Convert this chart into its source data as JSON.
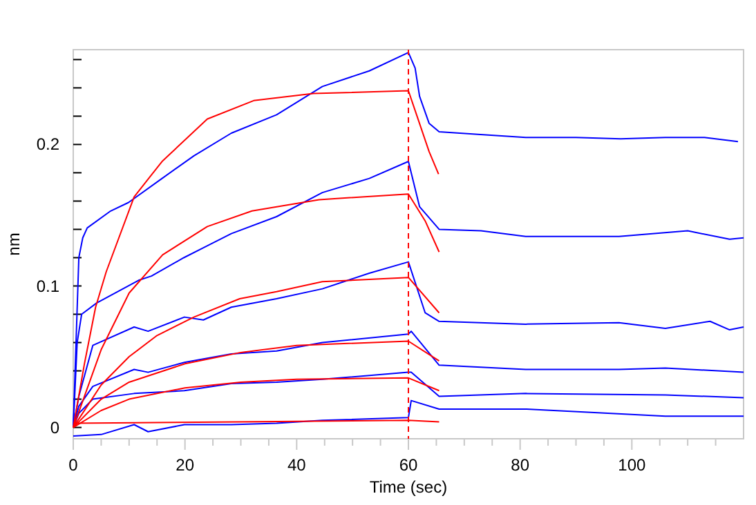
{
  "chart_data": {
    "type": "line",
    "xlabel": "Time (sec)",
    "ylabel": "nm",
    "xlim": [
      0,
      120
    ],
    "ylim": [
      -0.008,
      0.267
    ],
    "xticks": [
      0,
      {
        "value": 5,
        "label": null
      },
      {
        "value": 10,
        "label": null
      },
      {
        "value": 15,
        "label": null
      },
      20,
      {
        "value": 25,
        "label": null
      },
      {
        "value": 30,
        "label": null
      },
      {
        "value": 35,
        "label": null
      },
      40,
      {
        "value": 45,
        "label": null
      },
      {
        "value": 50,
        "label": null
      },
      {
        "value": 55,
        "label": null
      },
      60,
      {
        "value": 65,
        "label": null
      },
      {
        "value": 70,
        "label": null
      },
      {
        "value": 75,
        "label": null
      },
      80,
      {
        "value": 85,
        "label": null
      },
      {
        "value": 90,
        "label": null
      },
      {
        "value": 95,
        "label": null
      },
      100,
      {
        "value": 105,
        "label": null
      },
      {
        "value": 110,
        "label": null
      },
      {
        "value": 115,
        "label": null
      }
    ],
    "yticks": [
      0,
      {
        "value": 0.02,
        "label": null
      },
      {
        "value": 0.04,
        "label": null
      },
      {
        "value": 0.06,
        "label": null
      },
      {
        "value": 0.08,
        "label": null
      },
      0.1,
      {
        "value": 0.12,
        "label": null
      },
      {
        "value": 0.14,
        "label": null
      },
      {
        "value": 0.16,
        "label": null
      },
      {
        "value": 0.18,
        "label": null
      },
      0.2,
      {
        "value": 0.22,
        "label": null
      },
      {
        "value": 0.24,
        "label": null
      },
      {
        "value": 0.26,
        "label": null
      }
    ],
    "marker": "none",
    "line_style": "solid",
    "ref_lines": [
      {
        "axis": "x",
        "value": 60,
        "label": null,
        "color": "#ff0000",
        "line_style": "dashed"
      }
    ],
    "series": [
      {
        "color": "#0000ff",
        "x": [
          0,
          0.5,
          1,
          1.7,
          2.5,
          6.7,
          9.9,
          15.9,
          21.6,
          28.3,
          36.4,
          44.6,
          53,
          60,
          61.2,
          62,
          63.7,
          65.5,
          72.9,
          81,
          90,
          98,
          106,
          113,
          119
        ],
        "values": [
          0,
          0.06,
          0.12,
          0.134,
          0.141,
          0.153,
          0.159,
          0.176,
          0.192,
          0.208,
          0.221,
          0.241,
          0.252,
          0.265,
          0.254,
          0.234,
          0.215,
          0.209,
          0.207,
          0.205,
          0.205,
          0.204,
          0.205,
          0.205,
          0.202
        ]
      },
      {
        "color": "#0000ff",
        "x": [
          0,
          0.7,
          1.5,
          4.2,
          11.7,
          14,
          19.8,
          23.3,
          28.3,
          36.4,
          44.6,
          53,
          60,
          62,
          65.5,
          73,
          81,
          97.7,
          110,
          117.5,
          120
        ],
        "values": [
          0,
          0.06,
          0.08,
          0.088,
          0.104,
          0.107,
          0.12,
          0.127,
          0.137,
          0.149,
          0.166,
          0.176,
          0.188,
          0.156,
          0.14,
          0.139,
          0.135,
          0.135,
          0.139,
          0.133,
          0.134
        ]
      },
      {
        "color": "#0000ff",
        "x": [
          0,
          1,
          3.5,
          10.9,
          13.4,
          19.9,
          23.3,
          28.3,
          36.4,
          44.6,
          53,
          60,
          63,
          65.5,
          81,
          97.7,
          106,
          114,
          117.5,
          120
        ],
        "values": [
          0,
          0.022,
          0.058,
          0.071,
          0.068,
          0.078,
          0.076,
          0.085,
          0.091,
          0.098,
          0.109,
          0.117,
          0.081,
          0.075,
          0.073,
          0.074,
          0.07,
          0.075,
          0.069,
          0.071
        ]
      },
      {
        "color": "#0000ff",
        "x": [
          0,
          1,
          3.5,
          10.9,
          13.4,
          19.9,
          28.3,
          36.4,
          44.6,
          60,
          60.5,
          65.5,
          81,
          97.7,
          106,
          120
        ],
        "values": [
          0,
          0.015,
          0.029,
          0.041,
          0.039,
          0.046,
          0.052,
          0.054,
          0.06,
          0.066,
          0.068,
          0.044,
          0.041,
          0.041,
          0.042,
          0.039
        ]
      },
      {
        "color": "#0000ff",
        "x": [
          0,
          1,
          3.5,
          10.9,
          19.9,
          28.3,
          36.4,
          44.6,
          60,
          60.5,
          65.5,
          81,
          106,
          120
        ],
        "values": [
          0,
          0.01,
          0.02,
          0.024,
          0.026,
          0.031,
          0.032,
          0.034,
          0.039,
          0.039,
          0.022,
          0.024,
          0.023,
          0.021
        ]
      },
      {
        "color": "#0000ff",
        "x": [
          0,
          5,
          10.9,
          13.4,
          19.9,
          28.3,
          36.4,
          44.6,
          60,
          60.5,
          65.5,
          81,
          106,
          120
        ],
        "values": [
          -0.006,
          -0.005,
          0.002,
          -0.003,
          0.002,
          0.002,
          0.003,
          0.005,
          0.007,
          0.019,
          0.013,
          0.013,
          0.008,
          0.008
        ]
      },
      {
        "color": "#ff0000",
        "x": [
          0,
          2,
          4,
          5.9,
          10.9,
          15.9,
          24,
          32.3,
          43,
          60,
          61.2,
          63.7,
          65.4
        ],
        "values": [
          0,
          0.045,
          0.085,
          0.11,
          0.163,
          0.188,
          0.218,
          0.231,
          0.236,
          0.238,
          0.224,
          0.195,
          0.179
        ]
      },
      {
        "color": "#ff0000",
        "x": [
          0,
          5,
          10,
          16,
          24,
          32,
          44,
          60,
          63,
          65.5
        ],
        "values": [
          0,
          0.055,
          0.095,
          0.122,
          0.142,
          0.153,
          0.161,
          0.165,
          0.146,
          0.124
        ]
      },
      {
        "color": "#ff0000",
        "x": [
          0,
          5,
          10,
          15,
          21.6,
          29.8,
          36.4,
          44.6,
          60,
          65.5
        ],
        "values": [
          0,
          0.03,
          0.05,
          0.065,
          0.078,
          0.091,
          0.096,
          0.103,
          0.106,
          0.081
        ]
      },
      {
        "color": "#ff0000",
        "x": [
          0,
          5,
          10,
          20,
          30,
          40,
          60,
          65.5
        ],
        "values": [
          0,
          0.02,
          0.032,
          0.045,
          0.053,
          0.058,
          0.061,
          0.047
        ]
      },
      {
        "color": "#ff0000",
        "x": [
          0,
          5,
          10,
          20,
          30,
          40,
          60,
          65.5
        ],
        "values": [
          0,
          0.012,
          0.02,
          0.028,
          0.032,
          0.034,
          0.035,
          0.026
        ]
      },
      {
        "color": "#ff0000",
        "x": [
          0,
          30,
          60,
          65.5
        ],
        "values": [
          0.003,
          0.004,
          0.005,
          0.004
        ]
      }
    ]
  }
}
